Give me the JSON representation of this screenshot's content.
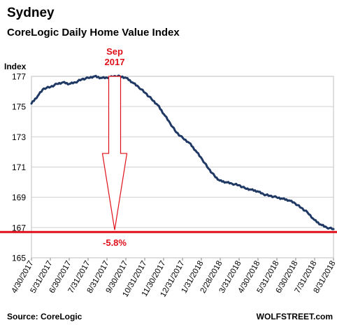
{
  "chart_data": {
    "type": "line",
    "title": "Sydney",
    "subtitle": "CoreLogic Daily Home Value Index",
    "ylabel": "Index",
    "xlabel": "",
    "ylim": [
      165,
      177
    ],
    "yticks": [
      165,
      167,
      169,
      171,
      173,
      175,
      177
    ],
    "grid": true,
    "x_tick_labels": [
      "4/30/2017",
      "5/31/2017",
      "6/30/2017",
      "7/31/2017",
      "8/31/2017",
      "9/30/2017",
      "10/31/2017",
      "11/30/2017",
      "12/31/2017",
      "1/31/2018",
      "2/28/2018",
      "3/31/2018",
      "4/30/2018",
      "5/31/2018",
      "6/30/2018",
      "7/31/2018",
      "8/31/2018"
    ],
    "series": [
      {
        "color": "#1f3864",
        "x": [
          "2017-04-30",
          "2017-05-10",
          "2017-05-20",
          "2017-05-31",
          "2017-06-10",
          "2017-06-20",
          "2017-06-30",
          "2017-07-10",
          "2017-07-20",
          "2017-07-31",
          "2017-08-10",
          "2017-08-20",
          "2017-08-31",
          "2017-09-10",
          "2017-09-20",
          "2017-09-30",
          "2017-10-10",
          "2017-10-20",
          "2017-10-31",
          "2017-11-10",
          "2017-11-20",
          "2017-11-30",
          "2017-12-10",
          "2017-12-20",
          "2017-12-31",
          "2018-01-10",
          "2018-01-20",
          "2018-01-31",
          "2018-02-10",
          "2018-02-20",
          "2018-02-28",
          "2018-03-10",
          "2018-03-20",
          "2018-03-31",
          "2018-04-10",
          "2018-04-20",
          "2018-04-30",
          "2018-05-10",
          "2018-05-20",
          "2018-05-31",
          "2018-06-10",
          "2018-06-20",
          "2018-06-30",
          "2018-07-10",
          "2018-07-20",
          "2018-07-31",
          "2018-08-10",
          "2018-08-20",
          "2018-08-31"
        ],
        "values": [
          175.2,
          175.7,
          176.2,
          176.3,
          176.5,
          176.6,
          176.5,
          176.6,
          176.8,
          176.9,
          177.0,
          176.9,
          176.9,
          177.0,
          177.0,
          176.9,
          176.6,
          176.3,
          175.9,
          175.5,
          175.1,
          174.5,
          173.9,
          173.3,
          172.9,
          172.6,
          172.1,
          171.5,
          170.9,
          170.4,
          170.1,
          170.0,
          169.9,
          169.8,
          169.6,
          169.5,
          169.4,
          169.2,
          169.1,
          169.0,
          168.9,
          168.8,
          168.6,
          168.3,
          168.0,
          167.5,
          167.2,
          167.0,
          166.9
        ]
      }
    ],
    "reference_line": {
      "value": 166.7,
      "color": "#e0101a"
    },
    "annotations": {
      "peak_label_line1": "Sep",
      "peak_label_line2": "2017",
      "change_label": "-5.8%",
      "arrow_color": "#e0101a"
    }
  },
  "footer": {
    "source": "Source: CoreLogic",
    "brand": "WOLFSTREET.com"
  }
}
